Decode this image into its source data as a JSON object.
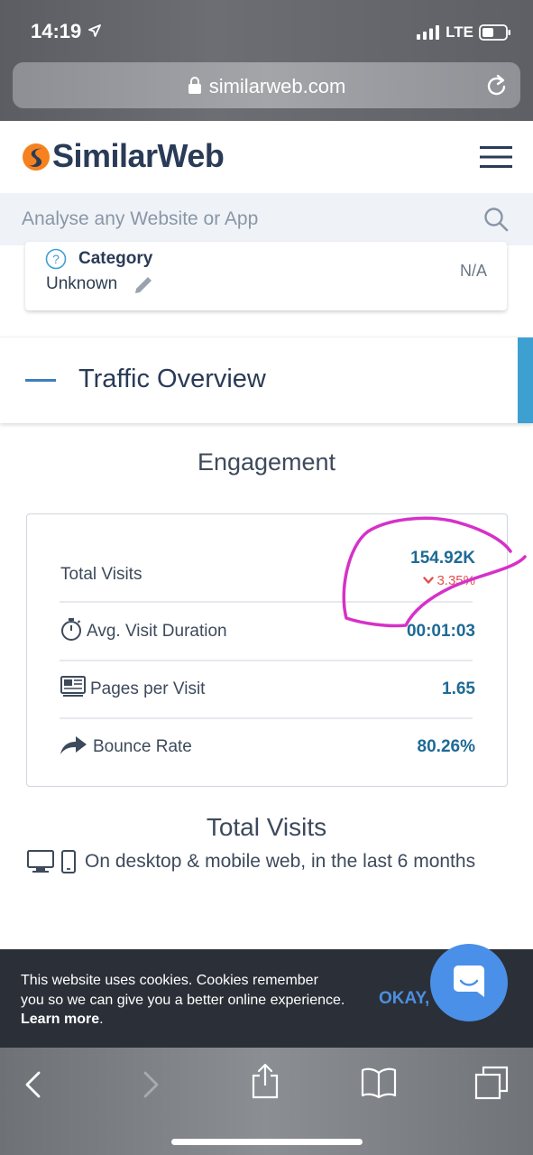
{
  "status": {
    "time": "14:19",
    "network": "LTE"
  },
  "browser": {
    "url": "similarweb.com"
  },
  "header": {
    "brand": "SimilarWeb"
  },
  "search": {
    "placeholder": "Analyse any Website or App"
  },
  "category": {
    "title": "Category",
    "value": "Unknown",
    "rank": "N/A"
  },
  "section": {
    "title": "Traffic Overview"
  },
  "engagement": {
    "title": "Engagement",
    "total_visits_label": "Total Visits",
    "total_visits_value": "154.92K",
    "total_visits_change": "3.35%",
    "avg_duration_label": "Avg. Visit Duration",
    "avg_duration_value": "00:01:03",
    "pages_label": "Pages per Visit",
    "pages_value": "1.65",
    "bounce_label": "Bounce Rate",
    "bounce_value": "80.26%"
  },
  "total_visits": {
    "title": "Total Visits",
    "subtitle": "On desktop & mobile web, in the last 6 months"
  },
  "cookie": {
    "text": "This website uses cookies. Cookies remember you so we can give you a better online experience.",
    "learn_more": "Learn more",
    "ok": "OKAY,"
  },
  "colors": {
    "brand_orange": "#f5821f",
    "brand_navy": "#2a3b57",
    "value_blue": "#1e6a95",
    "negative_red": "#e0504d",
    "accent_blue": "#3e9fd1",
    "annotation_magenta": "#d631c8"
  }
}
